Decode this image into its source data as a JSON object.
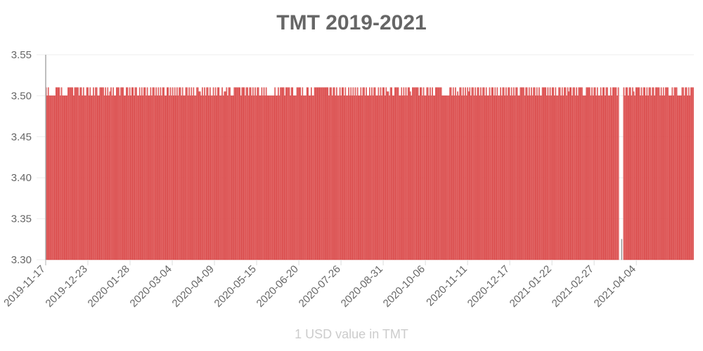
{
  "chart_data": {
    "type": "bar",
    "title": "TMT 2019-2021",
    "xlabel": "1 USD value in TMT",
    "ylabel": "",
    "ylim": [
      3.3,
      3.55
    ],
    "yticks": [
      "3.55",
      "3.50",
      "3.45",
      "3.40",
      "3.35",
      "3.30"
    ],
    "xtick_labels": [
      "2019-11-17",
      "2019-12-23",
      "2020-01-28",
      "2020-03-04",
      "2020-04-09",
      "2020-05-15",
      "2020-06-20",
      "2020-07-26",
      "2020-08-31",
      "2020-10-06",
      "2020-11-11",
      "2020-12-17",
      "2021-01-22",
      "2021-02-27",
      "2021-04-04"
    ],
    "x_start": "2019-11-17",
    "x_end": "2021-05-23",
    "tick_interval_days": 36,
    "grid": true,
    "legend": "none",
    "series": [
      {
        "name": "1 USD value in TMT",
        "bar_color": "#e57373",
        "border_color": "#d32f2f",
        "pattern_note": "daily values alternate between 3.50 and 3.51 (occasionally 3.505); one low outlier ~3.325 near 2021-03-25 with neighboring missing days",
        "values": [
          3.51,
          3.5,
          3.51,
          3.5,
          3.5,
          3.5,
          3.5,
          3.5,
          3.5,
          3.51,
          3.51,
          3.51,
          3.51,
          3.5,
          3.51,
          3.5,
          3.5,
          3.5,
          3.5,
          3.5,
          3.51,
          3.51,
          3.51,
          3.51,
          3.51,
          3.5,
          3.51,
          3.51,
          3.51,
          3.51,
          3.5,
          3.51,
          3.51,
          3.5,
          3.51,
          3.5,
          3.5,
          3.51,
          3.51,
          3.5,
          3.51,
          3.5,
          3.5,
          3.51,
          3.5,
          3.51,
          3.51,
          3.5,
          3.5,
          3.51,
          3.51,
          3.51,
          3.51,
          3.5,
          3.51,
          3.5,
          3.51,
          3.5,
          3.505,
          3.51,
          3.5,
          3.51,
          3.5,
          3.5,
          3.51,
          3.51,
          3.51,
          3.5,
          3.51,
          3.51,
          3.51,
          3.5,
          3.5,
          3.51,
          3.51,
          3.5,
          3.51,
          3.5,
          3.51,
          3.51,
          3.5,
          3.51,
          3.51,
          3.5,
          3.5,
          3.51,
          3.5,
          3.51,
          3.5,
          3.51,
          3.51,
          3.5,
          3.51,
          3.5,
          3.5,
          3.51,
          3.5,
          3.51,
          3.51,
          3.5,
          3.51,
          3.5,
          3.51,
          3.5,
          3.51,
          3.5,
          3.51,
          3.51,
          3.5,
          3.5,
          3.51,
          3.51,
          3.5,
          3.51,
          3.5,
          3.51,
          3.5,
          3.51,
          3.5,
          3.51,
          3.5,
          3.51,
          3.51,
          3.5,
          3.51,
          3.5,
          3.5,
          3.51,
          3.51,
          3.5,
          3.51,
          3.5,
          3.51,
          3.5,
          3.51,
          3.5,
          3.5,
          3.51,
          3.51,
          3.505,
          3.505,
          3.5,
          3.51,
          3.5,
          3.51,
          3.5,
          3.51,
          3.51,
          3.5,
          3.51,
          3.5,
          3.5,
          3.51,
          3.5,
          3.51,
          3.5,
          3.51,
          3.51,
          3.5,
          3.5,
          3.51,
          3.5,
          3.505,
          3.505,
          3.51,
          3.5,
          3.51,
          3.51,
          3.5,
          3.5,
          3.5,
          3.51,
          3.51,
          3.51,
          3.51,
          3.51,
          3.51,
          3.5,
          3.51,
          3.51,
          3.51,
          3.5,
          3.51,
          3.51,
          3.5,
          3.51,
          3.51,
          3.5,
          3.51,
          3.5,
          3.51,
          3.5,
          3.51,
          3.51,
          3.5,
          3.5,
          3.51,
          3.5,
          3.51,
          3.5,
          3.51,
          3.5,
          3.5,
          3.5,
          3.5,
          3.5,
          3.5,
          3.5,
          3.51,
          3.5,
          3.5,
          3.51,
          3.5,
          3.51,
          3.51,
          3.51,
          3.51,
          3.5,
          3.51,
          3.51,
          3.51,
          3.51,
          3.5,
          3.51,
          3.51,
          3.5,
          3.5,
          3.5,
          3.51,
          3.51,
          3.51,
          3.51,
          3.5,
          3.51,
          3.5,
          3.5,
          3.5,
          3.51,
          3.51,
          3.5,
          3.5,
          3.51,
          3.5,
          3.5,
          3.51,
          3.51,
          3.51,
          3.51,
          3.51,
          3.51,
          3.51,
          3.51,
          3.51,
          3.51,
          3.51,
          3.51,
          3.51,
          3.5,
          3.51,
          3.51,
          3.5,
          3.51,
          3.51,
          3.5,
          3.51,
          3.5,
          3.5,
          3.51,
          3.5,
          3.51,
          3.51,
          3.5,
          3.51,
          3.5,
          3.5,
          3.51,
          3.5,
          3.51,
          3.5,
          3.51,
          3.5,
          3.51,
          3.5,
          3.51,
          3.5,
          3.5,
          3.51,
          3.5,
          3.51,
          3.51,
          3.5,
          3.51,
          3.5,
          3.5,
          3.51,
          3.5,
          3.51,
          3.5,
          3.51,
          3.51,
          3.5,
          3.5,
          3.51,
          3.5,
          3.51,
          3.5,
          3.51,
          3.51,
          3.5,
          3.51,
          3.505,
          3.505,
          3.5,
          3.51,
          3.51,
          3.5,
          3.5,
          3.51,
          3.51,
          3.51,
          3.51,
          3.5,
          3.5,
          3.51,
          3.5,
          3.51,
          3.5,
          3.51,
          3.5,
          3.51,
          3.51,
          3.505,
          3.5,
          3.51,
          3.51,
          3.51,
          3.51,
          3.51,
          3.51,
          3.5,
          3.51,
          3.51,
          3.5,
          3.51,
          3.5,
          3.5,
          3.51,
          3.51,
          3.5,
          3.51,
          3.5,
          3.51,
          3.5,
          3.5,
          3.51,
          3.51,
          3.51,
          3.51,
          3.51,
          3.51,
          3.5,
          3.5,
          3.5,
          3.5,
          3.5,
          3.5,
          3.5,
          3.51,
          3.51,
          3.5,
          3.51,
          3.5,
          3.51,
          3.5,
          3.505,
          3.5,
          3.51,
          3.51,
          3.5,
          3.51,
          3.5,
          3.51,
          3.5,
          3.51,
          3.505,
          3.51,
          3.5,
          3.51,
          3.51,
          3.5,
          3.51,
          3.5,
          3.51,
          3.51,
          3.5,
          3.51,
          3.5,
          3.51,
          3.51,
          3.5,
          3.51,
          3.5,
          3.5,
          3.51,
          3.5,
          3.51,
          3.51,
          3.5,
          3.51,
          3.5,
          3.51,
          3.5,
          3.5,
          3.51,
          3.5,
          3.51,
          3.51,
          3.5,
          3.51,
          3.5,
          3.51,
          3.51,
          3.5,
          3.51,
          3.5,
          3.51,
          3.5,
          3.51,
          3.51,
          3.5,
          3.5,
          3.51,
          3.51,
          3.51,
          3.51,
          3.5,
          3.51,
          3.51,
          3.5,
          3.51,
          3.5,
          3.51,
          3.5,
          3.51,
          3.51,
          3.5,
          3.51,
          3.5,
          3.51,
          3.5,
          3.5,
          3.51,
          3.51,
          3.51,
          3.51,
          3.5,
          3.51,
          3.5,
          3.51,
          3.5,
          3.51,
          3.51,
          3.5,
          3.51,
          3.5,
          3.5,
          3.51,
          3.51,
          3.5,
          3.51,
          3.5,
          3.51,
          3.51,
          3.5,
          3.51,
          3.505,
          3.51,
          3.51,
          3.5,
          3.51,
          3.51,
          3.5,
          3.51,
          3.5,
          3.51,
          3.51,
          3.51,
          3.51,
          3.5,
          3.5,
          3.5,
          3.51,
          3.51,
          3.51,
          3.51,
          3.5,
          3.51,
          3.5,
          3.51,
          3.51,
          3.5,
          3.51,
          3.5,
          3.5,
          3.51,
          3.5,
          3.51,
          3.51,
          3.5,
          3.51,
          3.51,
          3.5,
          3.5,
          3.51,
          3.5,
          3.51,
          3.51,
          3.51,
          3.51,
          3.5,
          3.51,
          null,
          null,
          3.325,
          null,
          3.51,
          3.5,
          3.51,
          3.51,
          3.5,
          3.51,
          3.51,
          3.5,
          3.51,
          3.505,
          3.5,
          3.51,
          3.51,
          3.51,
          3.51,
          3.5,
          3.51,
          3.5,
          3.51,
          3.51,
          3.5,
          3.51,
          3.5,
          3.51,
          3.51,
          3.5,
          3.51,
          3.51,
          3.5,
          3.51,
          3.51,
          3.51,
          3.51,
          3.5,
          3.51,
          3.5,
          3.51,
          3.5,
          3.51,
          3.51,
          3.51,
          3.5,
          3.5,
          3.5,
          3.51,
          3.5,
          3.51,
          3.51,
          3.51,
          3.5,
          3.5,
          3.5,
          3.5,
          3.51,
          3.51,
          3.5,
          3.51,
          3.51,
          3.5,
          3.51,
          3.5,
          3.51,
          3.51,
          3.51
        ]
      }
    ],
    "outlier_color": "#999999"
  }
}
